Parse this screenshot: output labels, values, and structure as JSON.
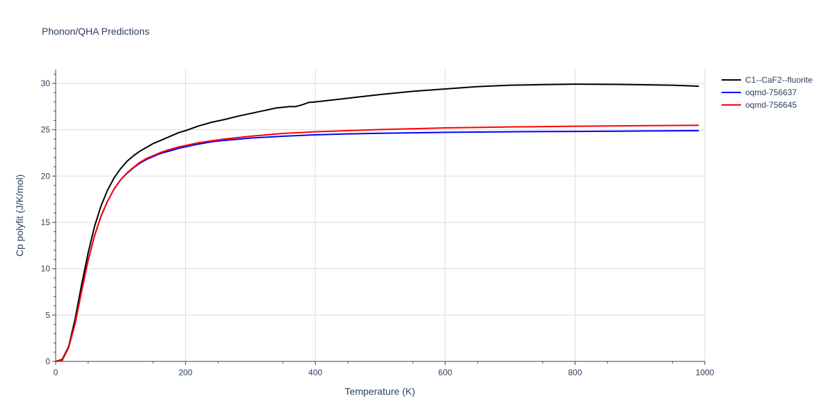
{
  "chart_data": {
    "type": "line",
    "title": "Phonon/QHA Predictions",
    "xlabel": "Temperature (K)",
    "ylabel": "Cp polyfit (J/K/mol)",
    "xlim": [
      0,
      1000
    ],
    "ylim": [
      0,
      31.5
    ],
    "xticks": [
      "0",
      "200",
      "400",
      "600",
      "800",
      "1000"
    ],
    "yticks": [
      "0",
      "5",
      "10",
      "15",
      "20",
      "25",
      "30"
    ],
    "grid": true,
    "legend_position": "top-right",
    "series": [
      {
        "name": "C1--CaF2--fluorite",
        "color": "#000000",
        "x": [
          0,
          10,
          20,
          30,
          40,
          50,
          60,
          70,
          80,
          90,
          100,
          110,
          120,
          130,
          140,
          150,
          160,
          170,
          180,
          190,
          200,
          220,
          240,
          260,
          280,
          300,
          320,
          340,
          360,
          370,
          380,
          390,
          400,
          450,
          500,
          550,
          600,
          650,
          700,
          750,
          800,
          850,
          880,
          900,
          950,
          990
        ],
        "y": [
          0,
          0.2,
          1.6,
          4.6,
          8.3,
          11.7,
          14.6,
          16.8,
          18.5,
          19.8,
          20.8,
          21.6,
          22.2,
          22.7,
          23.1,
          23.5,
          23.8,
          24.1,
          24.4,
          24.7,
          24.9,
          25.4,
          25.8,
          26.1,
          26.45,
          26.75,
          27.05,
          27.35,
          27.5,
          27.5,
          27.7,
          27.95,
          28.0,
          28.4,
          28.8,
          29.15,
          29.4,
          29.65,
          29.8,
          29.87,
          29.92,
          29.9,
          29.88,
          29.86,
          29.8,
          29.7
        ]
      },
      {
        "name": "oqmd-756637",
        "color": "#0000ff",
        "x": [
          0,
          10,
          20,
          30,
          40,
          50,
          60,
          70,
          80,
          90,
          100,
          110,
          120,
          130,
          140,
          150,
          160,
          170,
          180,
          190,
          200,
          220,
          240,
          260,
          280,
          300,
          350,
          400,
          450,
          500,
          600,
          700,
          800,
          900,
          990
        ],
        "y": [
          0,
          0.1,
          1.5,
          4.1,
          7.6,
          10.9,
          13.6,
          15.7,
          17.3,
          18.6,
          19.6,
          20.3,
          20.9,
          21.4,
          21.8,
          22.1,
          22.4,
          22.6,
          22.8,
          23.0,
          23.15,
          23.45,
          23.7,
          23.85,
          23.97,
          24.1,
          24.3,
          24.45,
          24.55,
          24.62,
          24.72,
          24.78,
          24.82,
          24.86,
          24.9
        ]
      },
      {
        "name": "oqmd-756645",
        "color": "#ff0000",
        "x": [
          0,
          10,
          20,
          30,
          40,
          50,
          60,
          70,
          80,
          90,
          100,
          110,
          120,
          130,
          140,
          150,
          160,
          170,
          180,
          190,
          200,
          220,
          240,
          260,
          280,
          300,
          350,
          400,
          450,
          500,
          600,
          700,
          800,
          900,
          990
        ],
        "y": [
          0,
          0.1,
          1.5,
          4.1,
          7.6,
          10.9,
          13.6,
          15.7,
          17.3,
          18.6,
          19.6,
          20.35,
          20.95,
          21.5,
          21.9,
          22.2,
          22.5,
          22.75,
          22.95,
          23.15,
          23.3,
          23.6,
          23.8,
          24.0,
          24.15,
          24.3,
          24.6,
          24.78,
          24.9,
          25.02,
          25.2,
          25.3,
          25.38,
          25.43,
          25.48
        ]
      }
    ]
  }
}
